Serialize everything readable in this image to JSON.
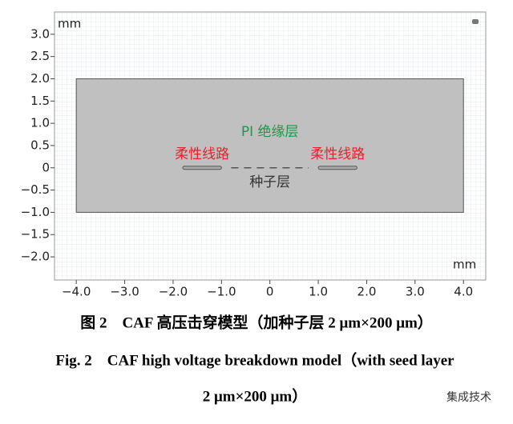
{
  "figure": {
    "x_unit": "mm",
    "y_unit": "mm",
    "xlim": [
      -4.45,
      4.46
    ],
    "ylim": [
      -2.52,
      3.5
    ],
    "xticks": [
      {
        "value": -4,
        "label": "−4.0"
      },
      {
        "value": -3,
        "label": "−3.0"
      },
      {
        "value": -2,
        "label": "−2.0"
      },
      {
        "value": -1,
        "label": "−1.0"
      },
      0,
      {
        "value": 1,
        "label": "1.0"
      },
      {
        "value": 2,
        "label": "2.0"
      },
      {
        "value": 3,
        "label": "3.0"
      },
      {
        "value": 4,
        "label": "4.0"
      }
    ],
    "yticks": [
      {
        "value": 3,
        "label": "3.0"
      },
      {
        "value": 2.5,
        "label": "2.5"
      },
      {
        "value": 2,
        "label": "2.0"
      },
      {
        "value": 1.5,
        "label": "1.5"
      },
      {
        "value": 1,
        "label": "1.0"
      },
      {
        "value": 0.5,
        "label": "0.5"
      },
      0,
      {
        "value": -0.5,
        "label": "−0.5"
      },
      {
        "value": -1,
        "label": "−1.0"
      },
      {
        "value": -1.5,
        "label": "−1.5"
      },
      {
        "value": -2,
        "label": "−2.0"
      }
    ],
    "pi_layer": {
      "x": [
        -4,
        4
      ],
      "y": [
        -1,
        2
      ],
      "label": "PI 绝缘层"
    },
    "traces": [
      {
        "x": [
          -1.8,
          -1.0
        ],
        "label": "柔性线路"
      },
      {
        "x": [
          1.0,
          1.8
        ],
        "label": "柔性线路"
      }
    ],
    "seed_layer": {
      "x": [
        -0.8,
        0.8
      ],
      "label": "种子层"
    }
  },
  "caption": {
    "chinese": "图 2　CAF 高压击穿模型（加种子层 2 μm×200 μm）",
    "english_line1": "Fig. 2　CAF high voltage breakdown model（with seed layer",
    "english_line2": "2 μm×200 μm）"
  },
  "watermark": "集成技术"
}
